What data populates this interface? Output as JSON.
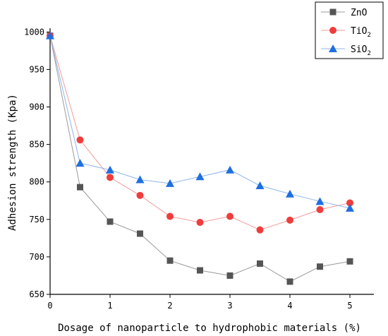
{
  "chart_data": {
    "type": "line",
    "xlabel": "Dosage of nanoparticle to hydrophobic materials (%)",
    "ylabel": "Adhesion strength (Kpa)",
    "xlim": [
      0,
      5.4
    ],
    "ylim": [
      650,
      1005
    ],
    "x_ticks": [
      0,
      1,
      2,
      3,
      4,
      5
    ],
    "y_ticks": [
      650,
      700,
      750,
      800,
      850,
      900,
      950,
      1000
    ],
    "grid": false,
    "legend_position": "top-right",
    "x": [
      0,
      0.5,
      1,
      1.5,
      2,
      2.5,
      3,
      3.5,
      4,
      4.5,
      5
    ],
    "series": [
      {
        "name": "ZnO",
        "legend_main": "ZnO",
        "legend_sub": "",
        "marker": "square",
        "color": "#555555",
        "line_color": "#9a9a9a",
        "values": [
          995,
          793,
          747,
          731,
          695,
          682,
          675,
          691,
          667,
          687,
          694
        ]
      },
      {
        "name": "TiO2",
        "legend_main": "TiO",
        "legend_sub": "2",
        "marker": "circle",
        "color": "#f03c3c",
        "line_color": "#f29b9b",
        "values": [
          995,
          856,
          806,
          782,
          754,
          746,
          754,
          736,
          749,
          763,
          772
        ]
      },
      {
        "name": "SiO2",
        "legend_main": "SiO",
        "legend_sub": "2",
        "marker": "triangle",
        "color": "#1f6fe0",
        "line_color": "#8fb5e8",
        "values": [
          995,
          825,
          816,
          803,
          798,
          807,
          816,
          795,
          784,
          774,
          765
        ]
      }
    ]
  }
}
